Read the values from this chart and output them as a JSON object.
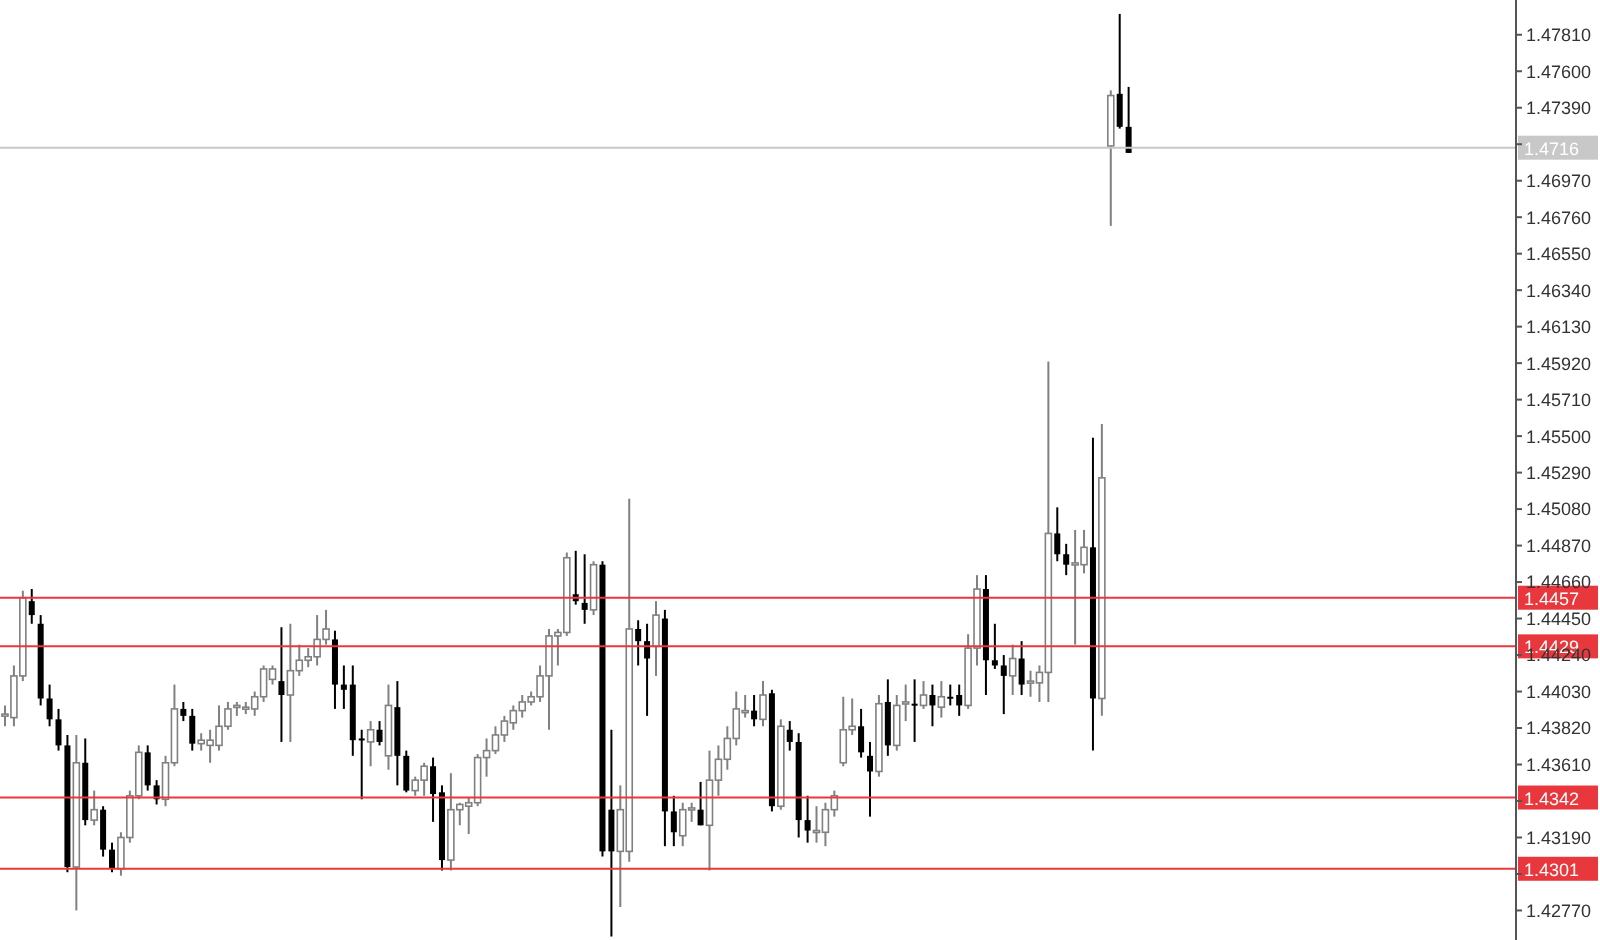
{
  "chart_data": {
    "type": "candlestick",
    "categories": [
      null,
      null,
      null,
      null,
      null,
      null,
      null,
      null,
      null,
      null,
      null,
      null,
      null,
      null,
      null,
      null,
      null,
      null,
      null,
      null,
      null,
      null,
      null,
      null,
      null,
      null,
      null,
      null,
      null,
      null,
      null,
      null,
      null,
      null,
      null,
      null,
      null,
      null,
      null,
      null,
      null,
      null,
      null,
      null,
      null,
      null,
      null,
      null,
      null,
      null,
      null,
      null,
      null,
      null,
      null,
      null,
      null,
      null,
      null,
      null,
      null,
      null,
      null,
      null,
      null,
      null,
      null,
      null,
      null,
      null,
      null,
      null,
      null,
      null,
      null,
      null,
      null,
      null,
      null,
      null,
      null,
      null,
      null,
      null,
      null,
      null,
      null,
      null,
      null,
      null,
      null,
      null,
      null,
      null,
      null,
      null,
      null,
      null,
      null,
      null,
      null,
      null,
      null,
      null,
      null,
      null,
      null,
      null,
      null,
      null,
      null,
      null,
      null,
      null,
      null,
      null,
      null,
      null,
      null,
      null,
      null,
      null,
      null,
      null,
      null,
      null,
      null,
      null,
      null,
      null,
      null,
      null,
      null,
      null,
      null,
      null,
      null,
      null,
      null,
      null,
      null,
      null,
      null,
      null,
      null,
      null,
      null,
      null,
      null,
      null,
      null,
      null,
      null,
      null,
      null,
      null,
      null,
      null,
      null,
      null,
      null,
      null,
      null,
      null,
      null,
      null,
      null,
      null,
      null,
      null
    ],
    "ohlc": [
      [
        1.4389,
        1.4395,
        1.4383,
        1.439
      ],
      [
        1.4388,
        1.4418,
        1.4383,
        1.4412
      ],
      [
        1.4412,
        1.4461,
        1.4409,
        1.4457
      ],
      [
        1.4455,
        1.4462,
        1.4442,
        1.4447
      ],
      [
        1.4442,
        1.4447,
        1.4395,
        1.4399
      ],
      [
        1.4399,
        1.4407,
        1.4383,
        1.4387
      ],
      [
        1.4387,
        1.4393,
        1.4369,
        1.4372
      ],
      [
        1.4372,
        1.4378,
        1.4299,
        1.4302
      ],
      [
        1.4302,
        1.4378,
        1.4277,
        1.4362
      ],
      [
        1.4362,
        1.4376,
        1.4326,
        1.4329
      ],
      [
        1.4329,
        1.4346,
        1.4326,
        1.4335
      ],
      [
        1.4335,
        1.4337,
        1.4308,
        1.4312
      ],
      [
        1.4312,
        1.4316,
        1.4299,
        1.4301
      ],
      [
        1.4301,
        1.4322,
        1.4297,
        1.4319
      ],
      [
        1.4319,
        1.4346,
        1.4316,
        1.4343
      ],
      [
        1.4343,
        1.4372,
        1.4341,
        1.4368
      ],
      [
        1.4368,
        1.4372,
        1.4346,
        1.4349
      ],
      [
        1.4349,
        1.4352,
        1.4338,
        1.4341
      ],
      [
        1.4341,
        1.4366,
        1.4337,
        1.4362
      ],
      [
        1.4362,
        1.4407,
        1.436,
        1.4393
      ],
      [
        1.4393,
        1.4397,
        1.4386,
        1.4389
      ],
      [
        1.4389,
        1.4393,
        1.4369,
        1.4373
      ],
      [
        1.4373,
        1.4379,
        1.4369,
        1.4375
      ],
      [
        1.4372,
        1.4381,
        1.4362,
        1.4375
      ],
      [
        1.4372,
        1.4395,
        1.4369,
        1.4383
      ],
      [
        1.4383,
        1.4397,
        1.4381,
        1.4393
      ],
      [
        1.4394,
        1.4397,
        1.4389,
        1.4395
      ],
      [
        1.4394,
        1.4397,
        1.439,
        1.4394
      ],
      [
        1.4393,
        1.4403,
        1.4389,
        1.44
      ],
      [
        1.44,
        1.4418,
        1.4397,
        1.4416
      ],
      [
        1.441,
        1.4418,
        1.4407,
        1.4416
      ],
      [
        1.4409,
        1.444,
        1.4374,
        1.4401
      ],
      [
        1.4401,
        1.4442,
        1.4374,
        1.4415
      ],
      [
        1.4415,
        1.443,
        1.4412,
        1.4421
      ],
      [
        1.4421,
        1.4428,
        1.4417,
        1.4423
      ],
      [
        1.4423,
        1.4447,
        1.4418,
        1.4433
      ],
      [
        1.4433,
        1.445,
        1.443,
        1.4439
      ],
      [
        1.4433,
        1.4438,
        1.4393,
        1.4407
      ],
      [
        1.4407,
        1.4418,
        1.4393,
        1.4404
      ],
      [
        1.4407,
        1.4418,
        1.4366,
        1.4375
      ],
      [
        1.4376,
        1.4381,
        1.4341,
        1.4375
      ],
      [
        1.4374,
        1.4386,
        1.436,
        1.4381
      ],
      [
        1.4381,
        1.4386,
        1.4372,
        1.4374
      ],
      [
        1.4366,
        1.4407,
        1.4358,
        1.4395
      ],
      [
        1.4394,
        1.4409,
        1.4349,
        1.4366
      ],
      [
        1.4366,
        1.4369,
        1.4345,
        1.4346
      ],
      [
        1.4346,
        1.4354,
        1.4343,
        1.4352
      ],
      [
        1.4352,
        1.4362,
        1.4343,
        1.436
      ],
      [
        1.436,
        1.4365,
        1.4328,
        1.4344
      ],
      [
        1.4345,
        1.4349,
        1.43,
        1.4306
      ],
      [
        1.4306,
        1.4356,
        1.43,
        1.4335
      ],
      [
        1.4335,
        1.4339,
        1.4326,
        1.4338
      ],
      [
        1.4337,
        1.4342,
        1.4321,
        1.4339
      ],
      [
        1.4339,
        1.4367,
        1.4337,
        1.4365
      ],
      [
        1.4365,
        1.4376,
        1.4354,
        1.4369
      ],
      [
        1.4369,
        1.4383,
        1.4367,
        1.4378
      ],
      [
        1.4378,
        1.4389,
        1.4374,
        1.4386
      ],
      [
        1.4385,
        1.4395,
        1.4381,
        1.4392
      ],
      [
        1.4392,
        1.4401,
        1.4388,
        1.4397
      ],
      [
        1.4397,
        1.4403,
        1.4395,
        1.44
      ],
      [
        1.44,
        1.4418,
        1.4397,
        1.4412
      ],
      [
        1.4412,
        1.4439,
        1.4381,
        1.4435
      ],
      [
        1.4435,
        1.4439,
        1.4418,
        1.4437
      ],
      [
        1.4437,
        1.4483,
        1.4435,
        1.448
      ],
      [
        1.4459,
        1.4484,
        1.4453,
        1.4455
      ],
      [
        1.4454,
        1.4482,
        1.4442,
        1.445
      ],
      [
        1.445,
        1.4478,
        1.4447,
        1.4476
      ],
      [
        1.4476,
        1.4478,
        1.4308,
        1.4311
      ],
      [
        1.4335,
        1.4381,
        1.4262,
        1.4311
      ],
      [
        1.4311,
        1.4349,
        1.4279,
        1.4335
      ],
      [
        1.4311,
        1.4514,
        1.4305,
        1.4439
      ],
      [
        1.4439,
        1.4444,
        1.4418,
        1.4432
      ],
      [
        1.4432,
        1.4442,
        1.4389,
        1.4422
      ],
      [
        1.4429,
        1.4455,
        1.4412,
        1.4447
      ],
      [
        1.4445,
        1.445,
        1.4314,
        1.4334
      ],
      [
        1.4334,
        1.4343,
        1.4314,
        1.4322
      ],
      [
        1.432,
        1.4339,
        1.4314,
        1.4335
      ],
      [
        1.4335,
        1.4339,
        1.4328,
        1.4336
      ],
      [
        1.4335,
        1.4351,
        1.4326,
        1.4326
      ],
      [
        1.4326,
        1.4369,
        1.43,
        1.4352
      ],
      [
        1.4352,
        1.4372,
        1.4343,
        1.4364
      ],
      [
        1.4364,
        1.4383,
        1.4358,
        1.4376
      ],
      [
        1.4376,
        1.4403,
        1.4372,
        1.4393
      ],
      [
        1.4392,
        1.4401,
        1.4388,
        1.4392
      ],
      [
        1.4392,
        1.4401,
        1.4383,
        1.4387
      ],
      [
        1.4387,
        1.4409,
        1.4383,
        1.4401
      ],
      [
        1.4402,
        1.4404,
        1.4334,
        1.4337
      ],
      [
        1.4337,
        1.4387,
        1.4335,
        1.4383
      ],
      [
        1.4381,
        1.4386,
        1.4369,
        1.4374
      ],
      [
        1.4374,
        1.4379,
        1.4319,
        1.4329
      ],
      [
        1.4329,
        1.4343,
        1.4316,
        1.4323
      ],
      [
        1.4322,
        1.4337,
        1.4316,
        1.4323
      ],
      [
        1.4322,
        1.4339,
        1.4314,
        1.4335
      ],
      [
        1.4335,
        1.4346,
        1.4331,
        1.4343
      ],
      [
        1.4362,
        1.44,
        1.436,
        1.4381
      ],
      [
        1.4381,
        1.4399,
        1.4378,
        1.4383
      ],
      [
        1.4383,
        1.4393,
        1.4365,
        1.4368
      ],
      [
        1.4366,
        1.4374,
        1.4331,
        1.4357
      ],
      [
        1.4357,
        1.4401,
        1.4354,
        1.4396
      ],
      [
        1.4397,
        1.441,
        1.4366,
        1.4372
      ],
      [
        1.4372,
        1.4401,
        1.4369,
        1.4395
      ],
      [
        1.4396,
        1.4407,
        1.4386,
        1.4397
      ],
      [
        1.4396,
        1.441,
        1.4374,
        1.4395
      ],
      [
        1.4395,
        1.4409,
        1.4393,
        1.4401
      ],
      [
        1.4401,
        1.4407,
        1.4383,
        1.4395
      ],
      [
        1.4394,
        1.4409,
        1.4388,
        1.44
      ],
      [
        1.44,
        1.4407,
        1.4395,
        1.4399
      ],
      [
        1.4401,
        1.4407,
        1.4389,
        1.4395
      ],
      [
        1.4395,
        1.4436,
        1.4393,
        1.4428
      ],
      [
        1.4428,
        1.447,
        1.4418,
        1.4462
      ],
      [
        1.4462,
        1.447,
        1.4401,
        1.4421
      ],
      [
        1.4421,
        1.4442,
        1.4416,
        1.4418
      ],
      [
        1.4418,
        1.4424,
        1.439,
        1.4412
      ],
      [
        1.4412,
        1.443,
        1.4401,
        1.4422
      ],
      [
        1.4422,
        1.4432,
        1.4401,
        1.4407
      ],
      [
        1.4408,
        1.4415,
        1.44,
        1.4409
      ],
      [
        1.4408,
        1.4418,
        1.4397,
        1.4414
      ],
      [
        1.4414,
        1.4593,
        1.4397,
        1.4494
      ],
      [
        1.4494,
        1.4509,
        1.4478,
        1.4482
      ],
      [
        1.4482,
        1.4488,
        1.447,
        1.4476
      ],
      [
        1.4476,
        1.4496,
        1.443,
        1.4477
      ],
      [
        1.4476,
        1.4496,
        1.4471,
        1.4486
      ],
      [
        1.4486,
        1.4549,
        1.4369,
        1.4399
      ],
      [
        1.4399,
        1.4557,
        1.4389,
        1.4526
      ],
      [
        1.4717,
        1.4749,
        1.4671,
        1.4746
      ],
      [
        1.4747,
        1.4793,
        1.4727,
        1.4728
      ],
      [
        1.4728,
        1.4751,
        1.4713,
        1.4713
      ],
      null,
      null,
      null,
      null,
      null,
      null,
      null,
      null,
      null,
      null,
      null,
      null,
      null,
      null,
      null,
      null,
      null,
      null,
      null,
      null,
      null,
      null,
      null,
      null,
      null,
      null,
      null,
      null,
      null,
      null,
      null,
      null,
      null,
      null,
      null,
      null,
      null,
      null,
      null,
      null,
      null,
      null,
      null
    ],
    "ylim": [
      1.426,
      1.4801
    ],
    "yticks": [
      {
        "value": 1.4277,
        "label": "1.42770"
      },
      {
        "value": 1.4298,
        "label": null
      },
      {
        "value": 1.4319,
        "label": "1.43190"
      },
      {
        "value": 1.434,
        "label": null
      },
      {
        "value": 1.4361,
        "label": "1.43610"
      },
      {
        "value": 1.4382,
        "label": "1.43820"
      },
      {
        "value": 1.4403,
        "label": "1.44030"
      },
      {
        "value": 1.4424,
        "label": "1.44240"
      },
      {
        "value": 1.4445,
        "label": "1.44450"
      },
      {
        "value": 1.4466,
        "label": "1.44660"
      },
      {
        "value": 1.4487,
        "label": "1.44870"
      },
      {
        "value": 1.4508,
        "label": "1.45080"
      },
      {
        "value": 1.4529,
        "label": "1.45290"
      },
      {
        "value": 1.455,
        "label": "1.45500"
      },
      {
        "value": 1.4571,
        "label": "1.45710"
      },
      {
        "value": 1.4592,
        "label": "1.45920"
      },
      {
        "value": 1.4613,
        "label": "1.46130"
      },
      {
        "value": 1.4634,
        "label": "1.46340"
      },
      {
        "value": 1.4655,
        "label": "1.46550"
      },
      {
        "value": 1.4676,
        "label": "1.46760"
      },
      {
        "value": 1.4697,
        "label": "1.46970"
      },
      {
        "value": 1.4718,
        "label": null
      },
      {
        "value": 1.4739,
        "label": "1.47390"
      },
      {
        "value": 1.476,
        "label": "1.47600"
      },
      {
        "value": 1.4781,
        "label": "1.47810"
      }
    ],
    "ref_lines": [
      {
        "axis": "y",
        "value": 1.4716,
        "label": "1.4716",
        "color": "#c8c8c8"
      },
      {
        "axis": "y",
        "value": 1.4457,
        "label": "1.4457",
        "color": "#e8383d"
      },
      {
        "axis": "y",
        "value": 1.4429,
        "label": "1.4429",
        "color": "#e8383d"
      },
      {
        "axis": "y",
        "value": 1.4342,
        "label": "1.4342",
        "color": "#e8383d"
      },
      {
        "axis": "y",
        "value": 1.4301,
        "label": "1.4301",
        "color": "#e8383d"
      }
    ],
    "tick_labels": "y",
    "grid": false,
    "legend": false
  }
}
